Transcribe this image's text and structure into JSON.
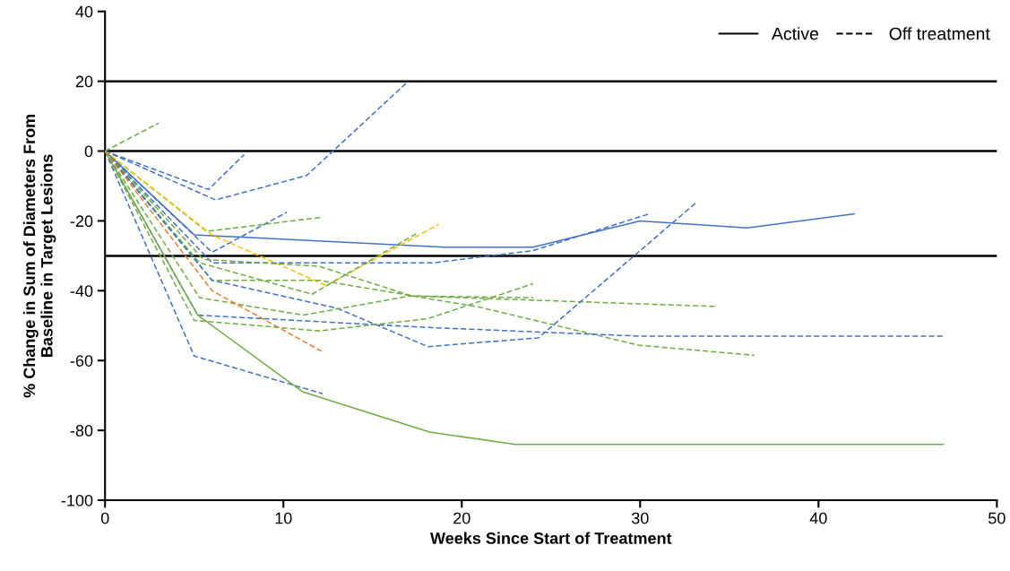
{
  "chart_data": {
    "type": "line",
    "xlabel": "Weeks Since Start of Treatment",
    "ylabel": "% Change in Sum of Diameters From\nBaseline in Target Lesions",
    "xlim": [
      0,
      50
    ],
    "xticks": [
      0,
      10,
      20,
      30,
      40,
      50
    ],
    "ylim": [
      -100,
      40
    ],
    "yticks": [
      -100,
      -80,
      -60,
      -40,
      -20,
      0,
      20,
      40
    ],
    "grid": false,
    "marker": "none",
    "annotations": [
      "Active",
      "Off treatment"
    ],
    "ref_lines": [
      {
        "axis": "y",
        "value": 20,
        "label": null,
        "color": "#000000"
      },
      {
        "axis": "y",
        "value": 0,
        "label": null,
        "color": "#000000"
      },
      {
        "axis": "y",
        "value": -30,
        "label": null,
        "color": "#000000"
      }
    ],
    "series": [
      {
        "color": "#70ad47",
        "line_style": "dashed",
        "x": [
          0,
          3
        ],
        "values": [
          0,
          8
        ]
      },
      {
        "color": "#4472c4",
        "line_style": "dashed",
        "x": [
          0,
          5.8,
          7.8
        ],
        "values": [
          0,
          -11,
          -1
        ]
      },
      {
        "color": "#4472c4",
        "line_style": "dashed",
        "x": [
          0,
          6.2,
          11.3,
          17
        ],
        "values": [
          0,
          -14,
          -7,
          20
        ]
      },
      {
        "color": "#4472c4",
        "line_style": "solid",
        "x": [
          0,
          5,
          19,
          24,
          30,
          36,
          42
        ],
        "values": [
          0,
          -24,
          -27.5,
          -27.5,
          -20,
          -22,
          -18
        ]
      },
      {
        "color": "#4472c4",
        "line_style": "dashed",
        "x": [
          0,
          6,
          10.2
        ],
        "values": [
          0,
          -29,
          -17.5
        ]
      },
      {
        "color": "#70ad47",
        "line_style": "dashed",
        "x": [
          0,
          5.7,
          12.1
        ],
        "values": [
          0,
          -23,
          -19
        ]
      },
      {
        "color": "#ffc000",
        "line_style": "dashed",
        "x": [
          0,
          6,
          12.4,
          18.7
        ],
        "values": [
          0,
          -24,
          -38.5,
          -21
        ]
      },
      {
        "color": "#70ad47",
        "line_style": "dashed",
        "x": [
          0,
          5.3,
          11.6,
          17.5
        ],
        "values": [
          0,
          -32,
          -41,
          -23.5
        ]
      },
      {
        "color": "#4472c4",
        "line_style": "dashed",
        "x": [
          0,
          6,
          18.4,
          24,
          30.5
        ],
        "values": [
          0,
          -32,
          -32,
          -28.5,
          -18
        ]
      },
      {
        "color": "#70ad47",
        "line_style": "dashed",
        "x": [
          0,
          5.5,
          12,
          17.2,
          34.2
        ],
        "values": [
          0,
          -31,
          -33,
          -41.5,
          -44.5
        ]
      },
      {
        "color": "#70ad47",
        "line_style": "dashed",
        "x": [
          0,
          6,
          12,
          21,
          29.9,
          36.4
        ],
        "values": [
          0,
          -37,
          -37,
          -44.7,
          -55.6,
          -58.5
        ]
      },
      {
        "color": "#4472c4",
        "line_style": "dashed",
        "x": [
          0,
          6,
          13,
          18.1,
          24.3,
          33.2
        ],
        "values": [
          0,
          -37,
          -45,
          -56,
          -53.5,
          -14.5
        ]
      },
      {
        "color": "#70ad47",
        "line_style": "dashed",
        "x": [
          0,
          5.3,
          11.1,
          17.1,
          24
        ],
        "values": [
          0,
          -42,
          -47,
          -41.5,
          -42
        ]
      },
      {
        "color": "#4472c4",
        "line_style": "dashed",
        "x": [
          0,
          5.2,
          18,
          30,
          47
        ],
        "values": [
          0,
          -47,
          -50.5,
          -53,
          -53
        ]
      },
      {
        "color": "#70ad47",
        "line_style": "dashed",
        "x": [
          0,
          5,
          12,
          18.1,
          24
        ],
        "values": [
          0,
          -48.5,
          -51.5,
          -48,
          -38
        ]
      },
      {
        "color": "#4472c4",
        "line_style": "dashed",
        "x": [
          0,
          5,
          12.2
        ],
        "values": [
          0,
          -58.7,
          -69.5
        ]
      },
      {
        "color": "#70ad47",
        "line_style": "solid",
        "x": [
          0,
          5.2,
          11.1,
          18.2,
          23,
          47
        ],
        "values": [
          0,
          -47,
          -69,
          -80.5,
          -84,
          -84
        ]
      },
      {
        "color": "#ed7d31",
        "line_style": "dashed",
        "x": [
          0,
          6,
          12.2
        ],
        "values": [
          0,
          -40,
          -57.5
        ]
      }
    ]
  }
}
